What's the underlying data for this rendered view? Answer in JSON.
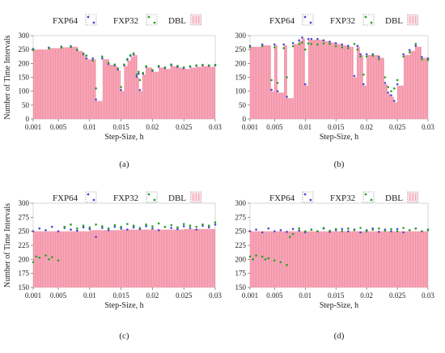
{
  "chart_data": [
    {
      "type": "bar",
      "panel_label": "(a)",
      "xlabel": "Step-Size, h",
      "ylabel": "Number of Time Intervals",
      "xlim": [
        0.001,
        0.03
      ],
      "ylim": [
        0,
        300
      ],
      "xticks": [
        "0.001",
        "0.005",
        "0.01",
        "0.015",
        "0.02",
        "0.025",
        "0.03"
      ],
      "xtick_values": [
        0.001,
        0.005,
        0.01,
        0.015,
        0.02,
        0.025,
        0.03
      ],
      "yticks": [
        "0",
        "50",
        "100",
        "150",
        "200",
        "250",
        "300"
      ],
      "ytick_values": [
        0,
        50,
        100,
        150,
        200,
        250,
        300
      ],
      "legend": [
        "FXP64",
        "FXP32",
        "DBL"
      ],
      "series": [
        {
          "name": "DBL",
          "kind": "bar",
          "color": "#f48fa4",
          "x": [
            0.001,
            0.0035,
            0.0055,
            0.007,
            0.008,
            0.009,
            0.0095,
            0.0105,
            0.011,
            0.012,
            0.013,
            0.014,
            0.0145,
            0.015,
            0.0155,
            0.016,
            0.0165,
            0.017,
            0.0175,
            0.0178,
            0.018,
            0.0185,
            0.019,
            0.02,
            0.021,
            0.022,
            0.023,
            0.024,
            0.025,
            0.026,
            0.027,
            0.028,
            0.029,
            0.03
          ],
          "y": [
            250,
            255,
            258,
            260,
            245,
            230,
            215,
            215,
            65,
            215,
            195,
            190,
            175,
            100,
            190,
            210,
            225,
            230,
            150,
            160,
            100,
            160,
            185,
            170,
            185,
            180,
            190,
            185,
            180,
            185,
            188,
            190,
            188,
            190
          ]
        },
        {
          "name": "FXP64",
          "kind": "scatter",
          "color": "#4a4ad0",
          "x": [
            0.001,
            0.0035,
            0.0055,
            0.007,
            0.008,
            0.009,
            0.0095,
            0.0105,
            0.011,
            0.012,
            0.013,
            0.014,
            0.0145,
            0.015,
            0.0155,
            0.016,
            0.0165,
            0.017,
            0.0175,
            0.0178,
            0.018,
            0.0185,
            0.019,
            0.02,
            0.021,
            0.022,
            0.023,
            0.024,
            0.025,
            0.026,
            0.027,
            0.028,
            0.029,
            0.03
          ],
          "y": [
            252,
            257,
            260,
            262,
            248,
            233,
            218,
            218,
            70,
            218,
            198,
            193,
            178,
            104,
            193,
            213,
            228,
            232,
            153,
            163,
            104,
            163,
            188,
            173,
            188,
            183,
            193,
            188,
            183,
            188,
            191,
            193,
            191,
            193
          ]
        },
        {
          "name": "FXP32",
          "kind": "scatter",
          "color": "#2aa02a",
          "x": [
            0.001,
            0.0035,
            0.0055,
            0.007,
            0.008,
            0.009,
            0.0095,
            0.0105,
            0.011,
            0.012,
            0.013,
            0.014,
            0.0145,
            0.015,
            0.0155,
            0.016,
            0.0165,
            0.017,
            0.0175,
            0.0178,
            0.018,
            0.0185,
            0.019,
            0.02,
            0.021,
            0.022,
            0.023,
            0.024,
            0.025,
            0.026,
            0.027,
            0.028,
            0.029,
            0.03
          ],
          "y": [
            248,
            254,
            257,
            259,
            250,
            236,
            228,
            210,
            110,
            225,
            202,
            196,
            182,
            115,
            196,
            216,
            230,
            236,
            160,
            170,
            140,
            166,
            190,
            176,
            191,
            186,
            196,
            191,
            186,
            190,
            193,
            195,
            193,
            195
          ]
        }
      ]
    },
    {
      "type": "bar",
      "panel_label": "(b)",
      "xlabel": "Step-Size, h",
      "ylabel": "",
      "xlim": [
        0.001,
        0.03
      ],
      "ylim": [
        0,
        300
      ],
      "xticks": [
        "0.001",
        "0.005",
        "0.01",
        "0.015",
        "0.02",
        "0.025",
        "0.03"
      ],
      "xtick_values": [
        0.001,
        0.005,
        0.01,
        0.015,
        0.02,
        0.025,
        0.03
      ],
      "yticks": [
        "0",
        "50",
        "100",
        "150",
        "200",
        "250",
        "300"
      ],
      "ytick_values": [
        0,
        50,
        100,
        150,
        200,
        250,
        300
      ],
      "legend": [
        "FXP64",
        "FXP32",
        "DBL"
      ],
      "series": [
        {
          "name": "DBL",
          "kind": "bar",
          "color": "#f48fa4",
          "x": [
            0.001,
            0.003,
            0.0045,
            0.005,
            0.0055,
            0.0065,
            0.007,
            0.008,
            0.009,
            0.0095,
            0.01,
            0.0105,
            0.011,
            0.012,
            0.013,
            0.014,
            0.015,
            0.016,
            0.017,
            0.018,
            0.0185,
            0.019,
            0.0195,
            0.02,
            0.021,
            0.022,
            0.023,
            0.0235,
            0.024,
            0.0245,
            0.025,
            0.026,
            0.027,
            0.028,
            0.029,
            0.03
          ],
          "y": [
            260,
            265,
            100,
            265,
            95,
            265,
            75,
            270,
            280,
            290,
            120,
            285,
            285,
            285,
            280,
            275,
            270,
            265,
            260,
            150,
            260,
            230,
            120,
            230,
            230,
            220,
            125,
            90,
            80,
            60,
            120,
            230,
            245,
            260,
            220,
            215
          ]
        },
        {
          "name": "FXP64",
          "kind": "scatter",
          "color": "#4a4ad0",
          "x": [
            0.001,
            0.003,
            0.0045,
            0.005,
            0.0055,
            0.0065,
            0.007,
            0.008,
            0.009,
            0.0095,
            0.01,
            0.0105,
            0.011,
            0.012,
            0.013,
            0.014,
            0.015,
            0.016,
            0.017,
            0.018,
            0.0185,
            0.019,
            0.0195,
            0.02,
            0.021,
            0.022,
            0.023,
            0.0235,
            0.024,
            0.0245,
            0.025,
            0.026,
            0.027,
            0.028,
            0.029,
            0.03
          ],
          "y": [
            263,
            268,
            105,
            268,
            100,
            268,
            80,
            273,
            283,
            293,
            125,
            288,
            288,
            288,
            283,
            278,
            273,
            268,
            263,
            155,
            263,
            233,
            125,
            233,
            233,
            223,
            130,
            95,
            85,
            65,
            125,
            233,
            248,
            263,
            223,
            218
          ]
        },
        {
          "name": "FXP32",
          "kind": "scatter",
          "color": "#2aa02a",
          "x": [
            0.001,
            0.003,
            0.0045,
            0.005,
            0.0055,
            0.0065,
            0.007,
            0.008,
            0.009,
            0.0095,
            0.01,
            0.0105,
            0.011,
            0.012,
            0.013,
            0.014,
            0.015,
            0.016,
            0.017,
            0.018,
            0.0185,
            0.019,
            0.0195,
            0.02,
            0.021,
            0.022,
            0.023,
            0.0235,
            0.024,
            0.0245,
            0.025,
            0.026,
            0.027,
            0.028,
            0.029,
            0.03
          ],
          "y": [
            258,
            262,
            140,
            258,
            130,
            255,
            150,
            262,
            270,
            275,
            250,
            272,
            270,
            268,
            272,
            270,
            262,
            258,
            255,
            270,
            250,
            225,
            160,
            225,
            228,
            215,
            150,
            115,
            100,
            110,
            140,
            225,
            240,
            270,
            215,
            212
          ]
        }
      ]
    },
    {
      "type": "bar",
      "panel_label": "(c)",
      "xlabel": "Step-Size, h",
      "ylabel": "Number of Time Intervals",
      "xlim": [
        0.001,
        0.03
      ],
      "ylim": [
        150,
        300
      ],
      "xticks": [
        "0.001",
        "0.005",
        "0.01",
        "0.015",
        "0.02",
        "0.025",
        "0.03"
      ],
      "xtick_values": [
        0.001,
        0.005,
        0.01,
        0.015,
        0.02,
        0.025,
        0.03
      ],
      "yticks": [
        "150",
        "175",
        "200",
        "225",
        "250",
        "275",
        "300"
      ],
      "ytick_values": [
        150,
        175,
        200,
        225,
        250,
        275,
        300
      ],
      "legend": [
        "FXP64",
        "FXP32",
        "DBL"
      ],
      "series": [
        {
          "name": "DBL",
          "kind": "bar",
          "color": "#f48fa4",
          "x": [
            0.001,
            0.005,
            0.01,
            0.015,
            0.02,
            0.025,
            0.03
          ],
          "y": [
            250,
            250,
            252,
            253,
            253,
            254,
            255
          ]
        },
        {
          "name": "FXP64",
          "kind": "scatter",
          "color": "#4a4ad0",
          "x": [
            0.001,
            0.002,
            0.003,
            0.004,
            0.005,
            0.006,
            0.007,
            0.008,
            0.009,
            0.01,
            0.011,
            0.012,
            0.013,
            0.014,
            0.015,
            0.016,
            0.017,
            0.018,
            0.019,
            0.02,
            0.021,
            0.022,
            0.023,
            0.024,
            0.025,
            0.026,
            0.027,
            0.028,
            0.029,
            0.03
          ],
          "y": [
            250,
            255,
            252,
            258,
            250,
            256,
            253,
            251,
            257,
            254,
            240,
            256,
            252,
            258,
            255,
            253,
            257,
            254,
            259,
            255,
            252,
            258,
            256,
            254,
            259,
            256,
            253,
            260,
            257,
            262
          ]
        },
        {
          "name": "FXP32",
          "kind": "scatter",
          "color": "#2aa02a",
          "x": [
            0.001,
            0.0015,
            0.002,
            0.003,
            0.0035,
            0.004,
            0.005,
            0.006,
            0.007,
            0.008,
            0.009,
            0.01,
            0.011,
            0.012,
            0.013,
            0.014,
            0.015,
            0.016,
            0.017,
            0.018,
            0.019,
            0.02,
            0.021,
            0.022,
            0.023,
            0.024,
            0.025,
            0.026,
            0.027,
            0.028,
            0.029,
            0.03
          ],
          "y": [
            195,
            205,
            203,
            207,
            200,
            204,
            198,
            258,
            262,
            255,
            260,
            257,
            262,
            259,
            255,
            261,
            258,
            263,
            260,
            256,
            262,
            259,
            264,
            258,
            261,
            257,
            263,
            260,
            258,
            262,
            260,
            266
          ]
        }
      ]
    },
    {
      "type": "bar",
      "panel_label": "(d)",
      "xlabel": "Step-Size, h",
      "ylabel": "",
      "xlim": [
        0.001,
        0.03
      ],
      "ylim": [
        150,
        300
      ],
      "xticks": [
        "0.001",
        "0.005",
        "0.01",
        "0.015",
        "0.02",
        "0.025",
        "0.03"
      ],
      "xtick_values": [
        0.001,
        0.005,
        0.01,
        0.015,
        0.02,
        0.025,
        0.03
      ],
      "yticks": [
        "150",
        "175",
        "200",
        "225",
        "250",
        "275",
        "300"
      ],
      "ytick_values": [
        150,
        175,
        200,
        225,
        250,
        275,
        300
      ],
      "legend": [
        "FXP64",
        "FXP32",
        "DBL"
      ],
      "series": [
        {
          "name": "DBL",
          "kind": "bar",
          "color": "#f48fa4",
          "x": [
            0.001,
            0.005,
            0.01,
            0.015,
            0.02,
            0.025,
            0.03
          ],
          "y": [
            250,
            250,
            250,
            250,
            250,
            250,
            250
          ]
        },
        {
          "name": "FXP64",
          "kind": "scatter",
          "color": "#4a4ad0",
          "x": [
            0.001,
            0.002,
            0.003,
            0.004,
            0.005,
            0.006,
            0.007,
            0.008,
            0.009,
            0.01,
            0.011,
            0.012,
            0.013,
            0.014,
            0.015,
            0.016,
            0.017,
            0.018,
            0.019,
            0.02,
            0.021,
            0.022,
            0.023,
            0.024,
            0.025,
            0.026,
            0.027,
            0.028,
            0.029,
            0.03
          ],
          "y": [
            250,
            253,
            248,
            255,
            250,
            252,
            249,
            254,
            251,
            248,
            253,
            250,
            255,
            249,
            252,
            254,
            250,
            253,
            248,
            252,
            255,
            249,
            253,
            250,
            254,
            248,
            252,
            255,
            250,
            252
          ]
        },
        {
          "name": "FXP32",
          "kind": "scatter",
          "color": "#2aa02a",
          "x": [
            0.001,
            0.0015,
            0.002,
            0.003,
            0.0035,
            0.004,
            0.005,
            0.006,
            0.007,
            0.0075,
            0.008,
            0.009,
            0.01,
            0.011,
            0.012,
            0.013,
            0.014,
            0.015,
            0.016,
            0.017,
            0.018,
            0.019,
            0.02,
            0.021,
            0.022,
            0.023,
            0.024,
            0.025,
            0.026,
            0.027,
            0.028,
            0.029,
            0.03
          ],
          "y": [
            205,
            200,
            207,
            205,
            200,
            202,
            198,
            195,
            190,
            240,
            245,
            255,
            250,
            253,
            250,
            256,
            251,
            254,
            250,
            255,
            252,
            256,
            250,
            253,
            255,
            251,
            254,
            250,
            256,
            252,
            255,
            250,
            253
          ]
        }
      ]
    }
  ]
}
